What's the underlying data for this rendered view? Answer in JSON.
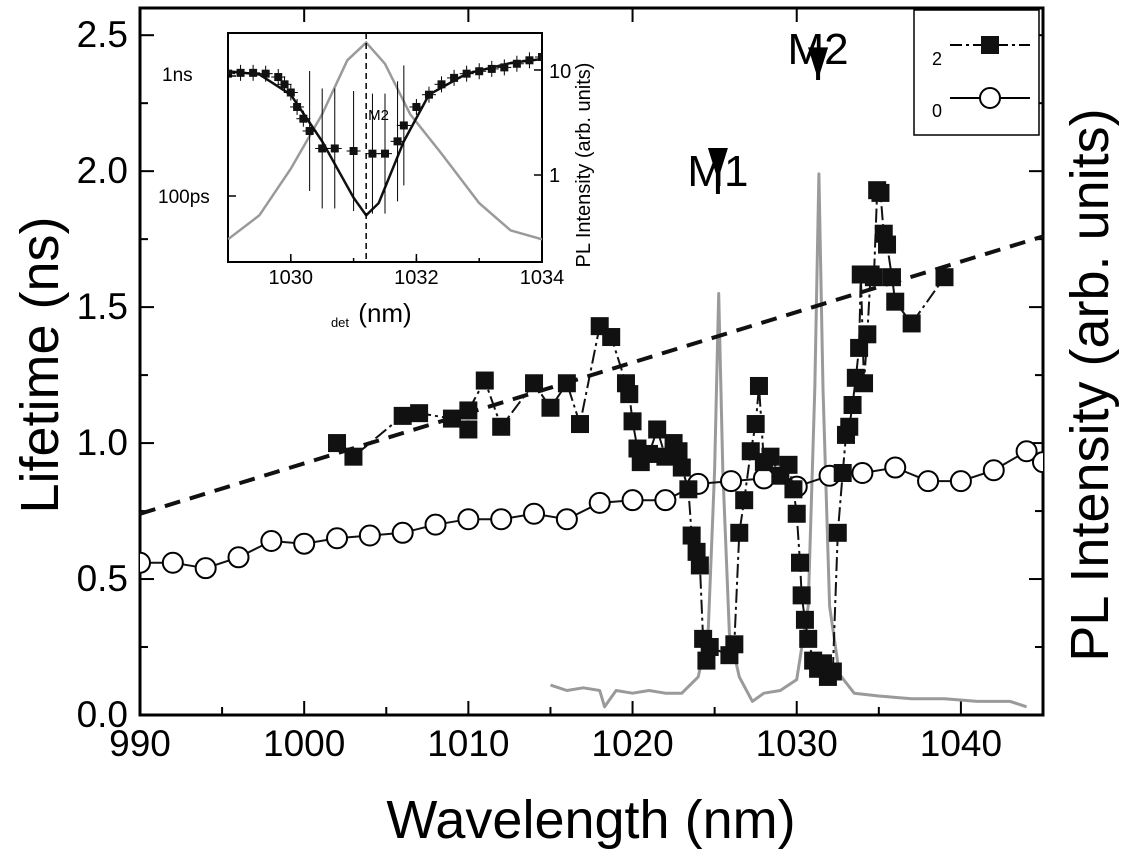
{
  "chart_data": [
    {
      "type": "line",
      "xlabel": "Wavelength (nm)",
      "ylabel": "Lifetime (ns)",
      "y2label": "PL Intensity (arb. units)",
      "xlim": [
        990,
        1045
      ],
      "ylim": [
        0,
        2.6
      ],
      "x_ticks": [
        "990",
        "1000",
        "1010",
        "1020",
        "1030",
        "1040"
      ],
      "y_ticks": [
        "0.0",
        "0.5",
        "1.0",
        "1.5",
        "2.0",
        "2.5"
      ],
      "legend": {
        "placement": "top-right",
        "entries": [
          "2",
          "0"
        ]
      },
      "annotations": [
        {
          "label": "M1",
          "x": 1025.2,
          "y": 1.96
        },
        {
          "label": "M2",
          "x": 1031.3,
          "y": 2.33
        }
      ],
      "series": [
        {
          "name": "2",
          "marker": "filled-square",
          "line": "dash-dot",
          "color": "#111111",
          "points": [
            [
              1002,
              1.0
            ],
            [
              1003,
              0.95
            ],
            [
              1006,
              1.1
            ],
            [
              1007,
              1.11
            ],
            [
              1009,
              1.09
            ],
            [
              1010,
              1.05
            ],
            [
              1010,
              1.12
            ],
            [
              1011,
              1.23
            ],
            [
              1012,
              1.06
            ],
            [
              1014,
              1.22
            ],
            [
              1015,
              1.13
            ],
            [
              1016,
              1.22
            ],
            [
              1016.8,
              1.07
            ],
            [
              1018,
              1.43
            ],
            [
              1018.7,
              1.39
            ],
            [
              1019.6,
              1.22
            ],
            [
              1019.8,
              1.18
            ],
            [
              1020,
              1.08
            ],
            [
              1020.3,
              0.98
            ],
            [
              1020.5,
              0.93
            ],
            [
              1021,
              0.96
            ],
            [
              1021.5,
              1.05
            ],
            [
              1022,
              0.95
            ],
            [
              1022.5,
              1.0
            ],
            [
              1022.8,
              0.97
            ],
            [
              1023,
              0.91
            ],
            [
              1023.4,
              0.83
            ],
            [
              1023.6,
              0.66
            ],
            [
              1023.9,
              0.6
            ],
            [
              1024.1,
              0.55
            ],
            [
              1024.3,
              0.28
            ],
            [
              1024.5,
              0.2
            ],
            [
              1024.7,
              0.25
            ],
            [
              1025.9,
              0.22
            ],
            [
              1026.2,
              0.26
            ],
            [
              1026.5,
              0.67
            ],
            [
              1026.8,
              0.79
            ],
            [
              1027.2,
              0.97
            ],
            [
              1027.5,
              1.07
            ],
            [
              1027.7,
              1.21
            ],
            [
              1028,
              0.93
            ],
            [
              1028.4,
              0.95
            ],
            [
              1029,
              0.88
            ],
            [
              1029.5,
              0.92
            ],
            [
              1029.8,
              0.83
            ],
            [
              1030,
              0.74
            ],
            [
              1030.2,
              0.56
            ],
            [
              1030.3,
              0.44
            ],
            [
              1030.5,
              0.35
            ],
            [
              1030.7,
              0.28
            ],
            [
              1031,
              0.2
            ],
            [
              1031.3,
              0.17
            ],
            [
              1031.6,
              0.19
            ],
            [
              1031.9,
              0.14
            ],
            [
              1032.2,
              0.16
            ],
            [
              1032.5,
              0.67
            ],
            [
              1032.8,
              0.89
            ],
            [
              1033,
              1.03
            ],
            [
              1033.2,
              1.06
            ],
            [
              1033.4,
              1.14
            ],
            [
              1033.6,
              1.24
            ],
            [
              1033.8,
              1.35
            ],
            [
              1033.9,
              1.62
            ],
            [
              1034.1,
              1.22
            ],
            [
              1034.3,
              1.4
            ],
            [
              1034.5,
              1.62
            ],
            [
              1034.7,
              1.61
            ],
            [
              1034.9,
              1.93
            ],
            [
              1035.1,
              1.92
            ],
            [
              1035.3,
              1.77
            ],
            [
              1035.5,
              1.73
            ],
            [
              1035.8,
              1.61
            ],
            [
              1036,
              1.52
            ],
            [
              1037,
              1.44
            ],
            [
              1039,
              1.61
            ]
          ]
        },
        {
          "name": "0",
          "marker": "open-circle",
          "line": "solid",
          "color": "#111111",
          "points": [
            [
              990,
              0.56
            ],
            [
              992,
              0.56
            ],
            [
              994,
              0.54
            ],
            [
              996,
              0.58
            ],
            [
              998,
              0.64
            ],
            [
              1000,
              0.63
            ],
            [
              1002,
              0.65
            ],
            [
              1004,
              0.66
            ],
            [
              1006,
              0.67
            ],
            [
              1008,
              0.7
            ],
            [
              1010,
              0.72
            ],
            [
              1012,
              0.72
            ],
            [
              1014,
              0.74
            ],
            [
              1016,
              0.72
            ],
            [
              1018,
              0.78
            ],
            [
              1020,
              0.79
            ],
            [
              1022,
              0.79
            ],
            [
              1024,
              0.85
            ],
            [
              1026,
              0.86
            ],
            [
              1028,
              0.87
            ],
            [
              1030,
              0.84
            ],
            [
              1032,
              0.88
            ],
            [
              1034,
              0.89
            ],
            [
              1036,
              0.91
            ],
            [
              1038,
              0.86
            ],
            [
              1040,
              0.86
            ],
            [
              1042,
              0.9
            ],
            [
              1044,
              0.97
            ],
            [
              1045,
              0.93
            ]
          ]
        },
        {
          "name": "",
          "line": "dashed",
          "color": "#111111",
          "points": [
            [
              990,
              0.74
            ],
            [
              1045,
              1.76
            ]
          ]
        },
        {
          "name": "",
          "line": "solid",
          "color": "#9a9a9a",
          "axis": "right",
          "points": [
            [
              1015,
              0.11
            ],
            [
              1016,
              0.09
            ],
            [
              1017,
              0.1
            ],
            [
              1018,
              0.09
            ],
            [
              1018.3,
              0.03
            ],
            [
              1019,
              0.09
            ],
            [
              1020,
              0.08
            ],
            [
              1021,
              0.09
            ],
            [
              1022,
              0.08
            ],
            [
              1023,
              0.08
            ],
            [
              1024,
              0.14
            ],
            [
              1024.6,
              0.3
            ],
            [
              1025.0,
              0.9
            ],
            [
              1025.25,
              1.55
            ],
            [
              1025.5,
              0.9
            ],
            [
              1025.9,
              0.3
            ],
            [
              1026.5,
              0.14
            ],
            [
              1027.3,
              0.05
            ],
            [
              1028,
              0.08
            ],
            [
              1029,
              0.09
            ],
            [
              1030,
              0.13
            ],
            [
              1030.7,
              0.4
            ],
            [
              1031.1,
              1.2
            ],
            [
              1031.35,
              1.99
            ],
            [
              1031.6,
              1.2
            ],
            [
              1032,
              0.4
            ],
            [
              1032.6,
              0.15
            ],
            [
              1033.5,
              0.08
            ],
            [
              1035,
              0.07
            ],
            [
              1037,
              0.06
            ],
            [
              1039,
              0.06
            ],
            [
              1041,
              0.05
            ],
            [
              1043,
              0.05
            ],
            [
              1044,
              0.03
            ]
          ]
        }
      ]
    },
    {
      "type": "line",
      "placement": "inset-top-left",
      "xlabel": "det(nm)",
      "ylabel": "",
      "y2label": "PL Intensity (arb. units)",
      "xlim": [
        1029,
        1034
      ],
      "ylim_log": [
        0.05,
        1.5
      ],
      "x_ticks": [
        "1030",
        "1032",
        "1034"
      ],
      "y_ticks_left": [
        "1ns",
        "100ps"
      ],
      "y_ticks_right": [
        "10",
        "1"
      ],
      "annotations": [
        {
          "label": "M2",
          "x": 1031.2
        }
      ],
      "series": [
        {
          "name": "",
          "marker": "filled-square",
          "error_bars": true,
          "color": "#111111",
          "points": [
            [
              1029,
              0.82
            ],
            [
              1029.2,
              0.83
            ],
            [
              1029.4,
              0.83
            ],
            [
              1029.6,
              0.82
            ],
            [
              1029.8,
              0.78
            ],
            [
              1029.9,
              0.7
            ],
            [
              1030.0,
              0.62
            ],
            [
              1030.1,
              0.5
            ],
            [
              1030.2,
              0.42
            ],
            [
              1030.3,
              0.35
            ],
            [
              1030.5,
              0.27
            ],
            [
              1030.7,
              0.27
            ],
            [
              1031.0,
              0.26
            ],
            [
              1031.3,
              0.25
            ],
            [
              1031.5,
              0.25
            ],
            [
              1031.7,
              0.3
            ],
            [
              1031.8,
              0.38
            ],
            [
              1032.0,
              0.5
            ],
            [
              1032.2,
              0.6
            ],
            [
              1032.4,
              0.7
            ],
            [
              1032.6,
              0.77
            ],
            [
              1032.8,
              0.82
            ],
            [
              1033.0,
              0.85
            ],
            [
              1033.2,
              0.88
            ],
            [
              1033.4,
              0.9
            ],
            [
              1033.6,
              0.95
            ],
            [
              1033.8,
              1.0
            ],
            [
              1034,
              1.05
            ]
          ]
        },
        {
          "name": "",
          "line": "solid",
          "color": "#111111",
          "points": [
            [
              1029,
              0.85
            ],
            [
              1029.5,
              0.81
            ],
            [
              1030,
              0.6
            ],
            [
              1030.5,
              0.3
            ],
            [
              1031.0,
              0.13
            ],
            [
              1031.2,
              0.1
            ],
            [
              1031.4,
              0.12
            ],
            [
              1031.8,
              0.3
            ],
            [
              1032.2,
              0.6
            ],
            [
              1032.8,
              0.82
            ],
            [
              1033.5,
              0.96
            ],
            [
              1034,
              1.02
            ]
          ]
        },
        {
          "name": "",
          "line": "solid",
          "color": "#9a9a9a",
          "axis": "right",
          "points": [
            [
              1029,
              0.07
            ],
            [
              1029.5,
              0.1
            ],
            [
              1030.0,
              0.2
            ],
            [
              1030.5,
              0.45
            ],
            [
              1030.9,
              1.0
            ],
            [
              1031.2,
              1.3
            ],
            [
              1031.5,
              0.95
            ],
            [
              1031.9,
              0.45
            ],
            [
              1032.4,
              0.25
            ],
            [
              1033,
              0.12
            ],
            [
              1033.5,
              0.08
            ],
            [
              1034,
              0.07
            ]
          ]
        }
      ]
    }
  ]
}
